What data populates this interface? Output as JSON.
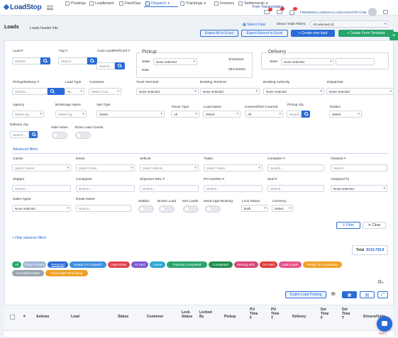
{
  "brand": {
    "logo": "LoadStop"
  },
  "nav": {
    "items": [
      {
        "label": "Postings"
      },
      {
        "label": "Loadboard"
      },
      {
        "label": "FleetOps"
      },
      {
        "label": "Dispatch"
      },
      {
        "label": "Trackings"
      },
      {
        "label": "Invoices"
      },
      {
        "label": "Settlements"
      }
    ],
    "promo": "Free Transportation",
    "badges": [
      "99",
      "99",
      "99"
    ],
    "user_email": "FREDEMO1.USMANALLY@LOADSTOP.COM"
  },
  "page": {
    "title": "Loads",
    "subtitle": "Loads header info"
  },
  "header_actions": {
    "select_view": "Select View",
    "show_hide_filters": "Show / Hide Filters",
    "all_selected": "All selected (4)",
    "export_all": "Export All to Excel",
    "export_recent": "Export Recent to Excel",
    "create_new_load": "+ Create new load",
    "create_from_template": "+ Create From Template"
  },
  "filters": {
    "load_no": {
      "label": "Load #",
      "placeholder": "Search..."
    },
    "trip_no": {
      "label": "Trip #",
      "placeholder": "Search..."
    },
    "cust_ref": {
      "label": "Cust Load/Ref/Conf #",
      "placeholder": "Search..."
    },
    "pickup": {
      "title": "Pickup",
      "state_label": "State",
      "state_value": "None selected",
      "date1": "3/16/2023",
      "date2": "05/14/2023",
      "date_label": "Date"
    },
    "delivery": {
      "title": "Delivery",
      "state_label": "State",
      "state_value": "None selected"
    },
    "pickup_delivery": {
      "label": "Pickup/Delivery #",
      "placeholder": "Search..."
    },
    "load_type": {
      "label": "Load Type",
      "value": "TL"
    },
    "customer": {
      "label": "Customer",
      "placeholder": "Select Cust..."
    },
    "truck_terminal": {
      "label": "Truck Terminal",
      "value": "None selected"
    },
    "booking_terminal": {
      "label": "Booking Terminal",
      "value": "None selected"
    },
    "booking_authority": {
      "label": "Booking Authority",
      "value": "None selected"
    },
    "dispatcher": {
      "label": "Dispatcher",
      "value": "None selected"
    },
    "agency": {
      "label": "Agency",
      "placeholder": "Select Ag..."
    },
    "brokerage_agent": {
      "label": "Brokerage Agent",
      "placeholder": "Select Ag..."
    },
    "van_type": {
      "label": "Van Type",
      "value": "Select"
    },
    "route_type": {
      "label": "Route Type",
      "value": "All"
    },
    "load_status": {
      "label": "Load status",
      "value": "Select"
    },
    "covered": {
      "label": "Covered/Not Covered",
      "value": "All"
    },
    "pickup_city": {
      "label": "Pickup city",
      "placeholder": "Search..."
    },
    "radius": {
      "label": "Radius",
      "value": "Select"
    },
    "delivery_city": {
      "label": "Delivery city",
      "placeholder": "Search..."
    },
    "hide_notes": {
      "label": "Hide Notes"
    },
    "show_load_counts": {
      "label": "Show Load Counts"
    }
  },
  "advanced": {
    "title": "Advanced filters",
    "carrier": {
      "label": "Carrier",
      "placeholder": "Select Carrier"
    },
    "driver": {
      "label": "Driver",
      "placeholder": "Select Driver"
    },
    "vehicle": {
      "label": "Vehicle",
      "placeholder": "Select Vehicle"
    },
    "trailer": {
      "label": "Trailer",
      "placeholder": "Select Trailer"
    },
    "container": {
      "label": "Container #",
      "placeholder": "Search..."
    },
    "chassis": {
      "label": "Chassis #",
      "placeholder": "Search..."
    },
    "shipper": {
      "label": "Shipper",
      "placeholder": "Search..."
    },
    "consignee": {
      "label": "Consignee",
      "placeholder": "Search..."
    },
    "shipment_bol": {
      "label": "Shipment BOL #",
      "placeholder": "Search..."
    },
    "po_number": {
      "label": "PO Number #",
      "placeholder": "Search..."
    },
    "seal": {
      "label": "Seal #",
      "placeholder": "Search..."
    },
    "assigned_to": {
      "label": "Assigned To",
      "value": "None selected"
    },
    "sales_agent": {
      "label": "Sales Agent",
      "value": "None selected"
    },
    "route_name": {
      "label": "Route Name",
      "placeholder": "Search..."
    },
    "settled": {
      "label": "Settled"
    },
    "broker_load": {
      "label": "Broker Load"
    },
    "edi_loads": {
      "label": "EDI Loads"
    },
    "need_appt": {
      "label": "Need Appt Booking"
    },
    "lock_status": {
      "label": "Lock Status",
      "value": "Both"
    },
    "currency": {
      "label": "Currency",
      "value": "Select"
    },
    "filter_btn": "Filter",
    "clear_btn": "Clear",
    "hide_link": "+ Hide advance filters"
  },
  "totals": {
    "label": "Total",
    "value": "$316,758.8"
  },
  "status_chips": [
    {
      "label": "All",
      "color": "#27a56b"
    },
    {
      "label": "Today Pickups",
      "color": "#9fb4d4"
    },
    {
      "label": "Tendered",
      "color": "#2a6bd6"
    },
    {
      "label": "Ready For Dispatch",
      "color": "#3c8fe0"
    },
    {
      "label": "Appt Risks",
      "color": "#e0424b"
    },
    {
      "label": "At Yard",
      "color": "#7a5cd1"
    },
    {
      "label": "Active",
      "color": "#2ba8d1"
    },
    {
      "label": "Tracking Completed",
      "color": "#27a56b"
    },
    {
      "label": "Completed",
      "color": "#1f8f4e"
    },
    {
      "label": "Missing BOL",
      "color": "#d64572"
    },
    {
      "label": "On Hold",
      "color": "#e03c3c"
    },
    {
      "label": "Late Loads",
      "color": "#e8508a"
    },
    {
      "label": "Ready for Accounting",
      "color": "#f0a125"
    },
    {
      "label": "Cancelled/TONU",
      "color": "#9aa3b0"
    },
    {
      "label": "Need Appt Scheduling",
      "color": "#f0a125"
    }
  ],
  "table_tools": {
    "expire": "Expire Load Posting"
  },
  "table": {
    "headers": [
      "#",
      "Actions",
      "Load",
      "Status",
      "Customer",
      "Lock Status",
      "Locked By",
      "Pickup",
      "PU Time F",
      "PU Time T",
      "Delivery",
      "Del Time F",
      "Del Time T",
      "Drivers/Units"
    ]
  },
  "row_tag": "Not L"
}
